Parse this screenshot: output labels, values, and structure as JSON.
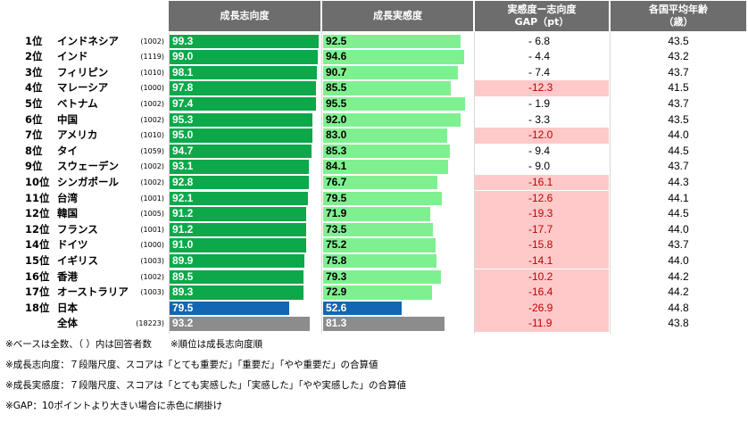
{
  "chart_data": {
    "type": "table",
    "columns": [
      "成長志向度",
      "成長実感度",
      "実感度ー志向度 GAP（pt）",
      "各国平均年齢 （歳）"
    ],
    "headers": {
      "aspiration": "成長志向度",
      "realization": "成長実感度",
      "gap_line1": "実感度ー志向度",
      "gap_line2": "GAP（pt）",
      "age_line1": "各国平均年齢",
      "age_line2": "（歳）"
    },
    "rows": [
      {
        "rank": "1位",
        "country": "インドネシア",
        "n": "(1002)",
        "aspiration": 99.3,
        "aspiration_label": "99.3",
        "realization": 92.5,
        "realization_label": "92.5",
        "gap_label": "-  6.8",
        "gap_highlight": false,
        "age": "43.5",
        "group": "top"
      },
      {
        "rank": "2位",
        "country": "インド",
        "n": "(1119)",
        "aspiration": 99.0,
        "aspiration_label": "99.0",
        "realization": 94.6,
        "realization_label": "94.6",
        "gap_label": "-  4.4",
        "gap_highlight": false,
        "age": "43.2",
        "group": "top"
      },
      {
        "rank": "3位",
        "country": "フィリピン",
        "n": "(1010)",
        "aspiration": 98.1,
        "aspiration_label": "98.1",
        "realization": 90.7,
        "realization_label": "90.7",
        "gap_label": "-  7.4",
        "gap_highlight": false,
        "age": "43.7",
        "group": "top"
      },
      {
        "rank": "4位",
        "country": "マレーシア",
        "n": "(1000)",
        "aspiration": 97.8,
        "aspiration_label": "97.8",
        "realization": 85.5,
        "realization_label": "85.5",
        "gap_label": "-12.3",
        "gap_highlight": true,
        "age": "41.5",
        "group": "top"
      },
      {
        "rank": "5位",
        "country": "ベトナム",
        "n": "(1002)",
        "aspiration": 97.4,
        "aspiration_label": "97.4",
        "realization": 95.5,
        "realization_label": "95.5",
        "gap_label": "-  1.9",
        "gap_highlight": false,
        "age": "43.7",
        "group": "top"
      },
      {
        "rank": "6位",
        "country": "中国",
        "n": "(1002)",
        "aspiration": 95.3,
        "aspiration_label": "95.3",
        "realization": 92.0,
        "realization_label": "92.0",
        "gap_label": "-  3.3",
        "gap_highlight": false,
        "age": "43.5",
        "group": "top"
      },
      {
        "rank": "7位",
        "country": "アメリカ",
        "n": "(1010)",
        "aspiration": 95.0,
        "aspiration_label": "95.0",
        "realization": 83.0,
        "realization_label": "83.0",
        "gap_label": "-12.0",
        "gap_highlight": true,
        "age": "44.0",
        "group": "top"
      },
      {
        "rank": "8位",
        "country": "タイ",
        "n": "(1059)",
        "aspiration": 94.7,
        "aspiration_label": "94.7",
        "realization": 85.3,
        "realization_label": "85.3",
        "gap_label": "-  9.4",
        "gap_highlight": false,
        "age": "44.5",
        "group": "top"
      },
      {
        "rank": "9位",
        "country": "スウェーデン",
        "n": "(1002)",
        "aspiration": 93.1,
        "aspiration_label": "93.1",
        "realization": 84.1,
        "realization_label": "84.1",
        "gap_label": "-  9.0",
        "gap_highlight": false,
        "age": "43.7",
        "group": "top"
      },
      {
        "rank": "10位",
        "country": "シンガポール",
        "n": "(1002)",
        "aspiration": 92.8,
        "aspiration_label": "92.8",
        "realization": 76.7,
        "realization_label": "76.7",
        "gap_label": "-16.1",
        "gap_highlight": true,
        "age": "44.3",
        "group": "top"
      },
      {
        "rank": "11位",
        "country": "台湾",
        "n": "(1001)",
        "aspiration": 92.1,
        "aspiration_label": "92.1",
        "realization": 79.5,
        "realization_label": "79.5",
        "gap_label": "-12.6",
        "gap_highlight": true,
        "age": "44.1",
        "group": "top"
      },
      {
        "rank": "12位",
        "country": "韓国",
        "n": "(1005)",
        "aspiration": 91.2,
        "aspiration_label": "91.2",
        "realization": 71.9,
        "realization_label": "71.9",
        "gap_label": "-19.3",
        "gap_highlight": true,
        "age": "44.5",
        "group": "top"
      },
      {
        "rank": "12位",
        "country": "フランス",
        "n": "(1001)",
        "aspiration": 91.2,
        "aspiration_label": "91.2",
        "realization": 73.5,
        "realization_label": "73.5",
        "gap_label": "-17.7",
        "gap_highlight": true,
        "age": "44.0",
        "group": "top"
      },
      {
        "rank": "14位",
        "country": "ドイツ",
        "n": "(1000)",
        "aspiration": 91.0,
        "aspiration_label": "91.0",
        "realization": 75.2,
        "realization_label": "75.2",
        "gap_label": "-15.8",
        "gap_highlight": true,
        "age": "43.7",
        "group": "top"
      },
      {
        "rank": "15位",
        "country": "イギリス",
        "n": "(1003)",
        "aspiration": 89.9,
        "aspiration_label": "89.9",
        "realization": 75.8,
        "realization_label": "75.8",
        "gap_label": "-14.1",
        "gap_highlight": true,
        "age": "44.0",
        "group": "top"
      },
      {
        "rank": "16位",
        "country": "香港",
        "n": "(1002)",
        "aspiration": 89.5,
        "aspiration_label": "89.5",
        "realization": 79.3,
        "realization_label": "79.3",
        "gap_label": "-10.2",
        "gap_highlight": true,
        "age": "44.2",
        "group": "top"
      },
      {
        "rank": "17位",
        "country": "オーストラリア",
        "n": "(1003)",
        "aspiration": 89.3,
        "aspiration_label": "89.3",
        "realization": 72.9,
        "realization_label": "72.9",
        "gap_label": "-16.4",
        "gap_highlight": true,
        "age": "44.2",
        "group": "top"
      },
      {
        "rank": "18位",
        "country": "日本",
        "n": "",
        "aspiration": 79.5,
        "aspiration_label": "79.5",
        "realization": 52.6,
        "realization_label": "52.6",
        "gap_label": "-26.9",
        "gap_highlight": true,
        "age": "44.8",
        "group": "japan"
      },
      {
        "rank": "",
        "country": "全体",
        "n": "(18223)",
        "aspiration": 93.2,
        "aspiration_label": "93.2",
        "realization": 81.3,
        "realization_label": "81.3",
        "gap_label": "-11.9",
        "gap_highlight": true,
        "age": "43.8",
        "group": "total"
      }
    ],
    "xlim": [
      0,
      100
    ]
  },
  "colors": {
    "header_bg": "#6d6d6d",
    "aspiration_bar": "#0da84a",
    "realization_bar": "#7ff090",
    "japan_bar": "#1266b3",
    "total_bar": "#8c8c8c",
    "gap_highlight_bg": "#ffc9c9"
  },
  "notes": [
    "※ベースは全数、（  ）内は回答者数　　※順位は成長志向度順",
    "※成長志向度：７段階尺度、スコアは「とても重要だ」「重要だ」「やや重要だ」の合算値",
    "※成長実感度：７段階尺度、スコアは「とても実感した」「実感した」「やや実感した」の合算値",
    "※GAP：10ポイントより大きい場合に赤色に網掛け"
  ]
}
